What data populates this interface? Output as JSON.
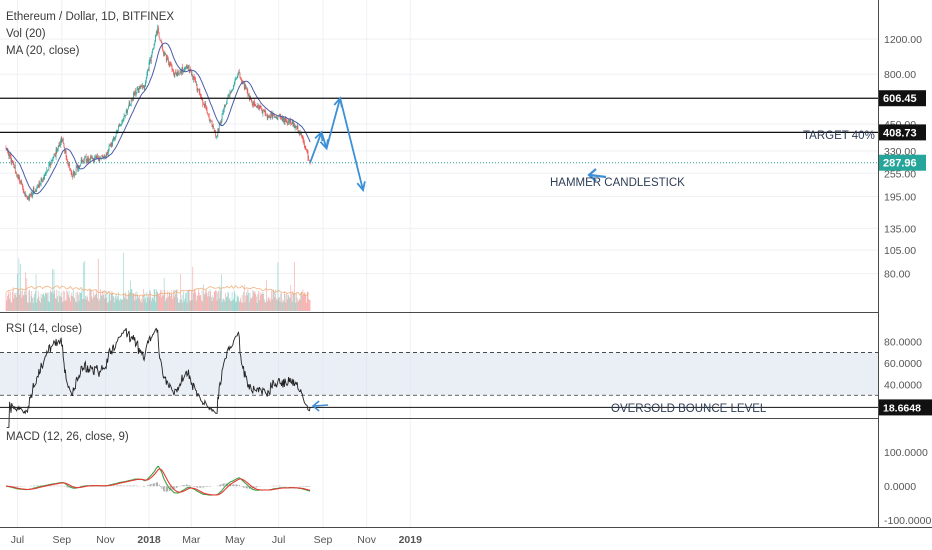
{
  "header": {
    "title": "Ethereum / Dollar, 1D, BITFINEX",
    "vol_label": "Vol (20)",
    "ma_label": "MA (20, close)"
  },
  "price_axis": {
    "ticks": [
      "1200.00",
      "800.00",
      "450.00",
      "330.00",
      "255.00",
      "195.00",
      "135.00",
      "105.00",
      "80.00"
    ]
  },
  "levels": [
    {
      "label": "606.45",
      "style": "solid"
    },
    {
      "label": "408.73",
      "style": "solid"
    },
    {
      "label": "287.96",
      "style": "dotted-green"
    }
  ],
  "annotations": {
    "target": "TARGET 40%",
    "hammer": "HAMMER CANDLESTICK",
    "oversold": "OVERSOLD BOUNCE LEVEL"
  },
  "rsi": {
    "label": "RSI (14, close)",
    "ticks": [
      "80.0000",
      "60.0000",
      "40.0000"
    ],
    "current": "18.6648"
  },
  "macd": {
    "label": "MACD (12, 26, close, 9)",
    "ticks": [
      "100.0000",
      "0.0000",
      "-100.0000"
    ]
  },
  "time_axis": {
    "labels": [
      "Jul",
      "Sep",
      "Nov",
      "2018",
      "Mar",
      "May",
      "Jul",
      "Sep",
      "Nov",
      "2019"
    ]
  },
  "colors": {
    "up": "#26a69a",
    "down": "#ef5350",
    "ma": "#4a5ca8",
    "projection": "#3d8fd6",
    "rsi_band": "#d8e2ee",
    "macd_signal": "#e53935",
    "macd_line": "#43a047"
  },
  "chart_data": {
    "type": "candlestick",
    "symbol": "ETHUSD",
    "title": "Ethereum / Dollar, 1D, BITFINEX",
    "months": [
      "Jul",
      "Sep",
      "Nov",
      "2018",
      "Mar",
      "May",
      "Jul"
    ],
    "close_path": [
      {
        "date": "2017-06-15",
        "close": 340
      },
      {
        "date": "2017-07-15",
        "close": 190
      },
      {
        "date": "2017-08-01",
        "close": 225
      },
      {
        "date": "2017-08-25",
        "close": 330
      },
      {
        "date": "2017-09-01",
        "close": 380
      },
      {
        "date": "2017-09-15",
        "close": 245
      },
      {
        "date": "2017-10-01",
        "close": 300
      },
      {
        "date": "2017-10-31",
        "close": 305
      },
      {
        "date": "2017-11-25",
        "close": 470
      },
      {
        "date": "2017-12-12",
        "close": 650
      },
      {
        "date": "2017-12-25",
        "close": 700
      },
      {
        "date": "2018-01-13",
        "close": 1350
      },
      {
        "date": "2018-01-20",
        "close": 1050
      },
      {
        "date": "2018-02-05",
        "close": 800
      },
      {
        "date": "2018-02-25",
        "close": 870
      },
      {
        "date": "2018-03-20",
        "close": 550
      },
      {
        "date": "2018-04-05",
        "close": 390
      },
      {
        "date": "2018-04-20",
        "close": 600
      },
      {
        "date": "2018-05-06",
        "close": 800
      },
      {
        "date": "2018-05-25",
        "close": 580
      },
      {
        "date": "2018-06-15",
        "close": 500
      },
      {
        "date": "2018-07-15",
        "close": 470
      },
      {
        "date": "2018-08-01",
        "close": 410
      },
      {
        "date": "2018-08-14",
        "close": 287.96
      }
    ],
    "levels": [
      606.45,
      408.73,
      287.96
    ],
    "projection": [
      {
        "date": "2018-08-14",
        "price": 287.96
      },
      {
        "date": "2018-08-30",
        "price": 410
      },
      {
        "date": "2018-09-06",
        "price": 340
      },
      {
        "date": "2018-09-25",
        "price": 606.45
      },
      {
        "date": "2018-10-27",
        "price": 210
      }
    ],
    "rsi_levels": [
      70,
      30
    ],
    "rsi_current": 18.6648
  }
}
